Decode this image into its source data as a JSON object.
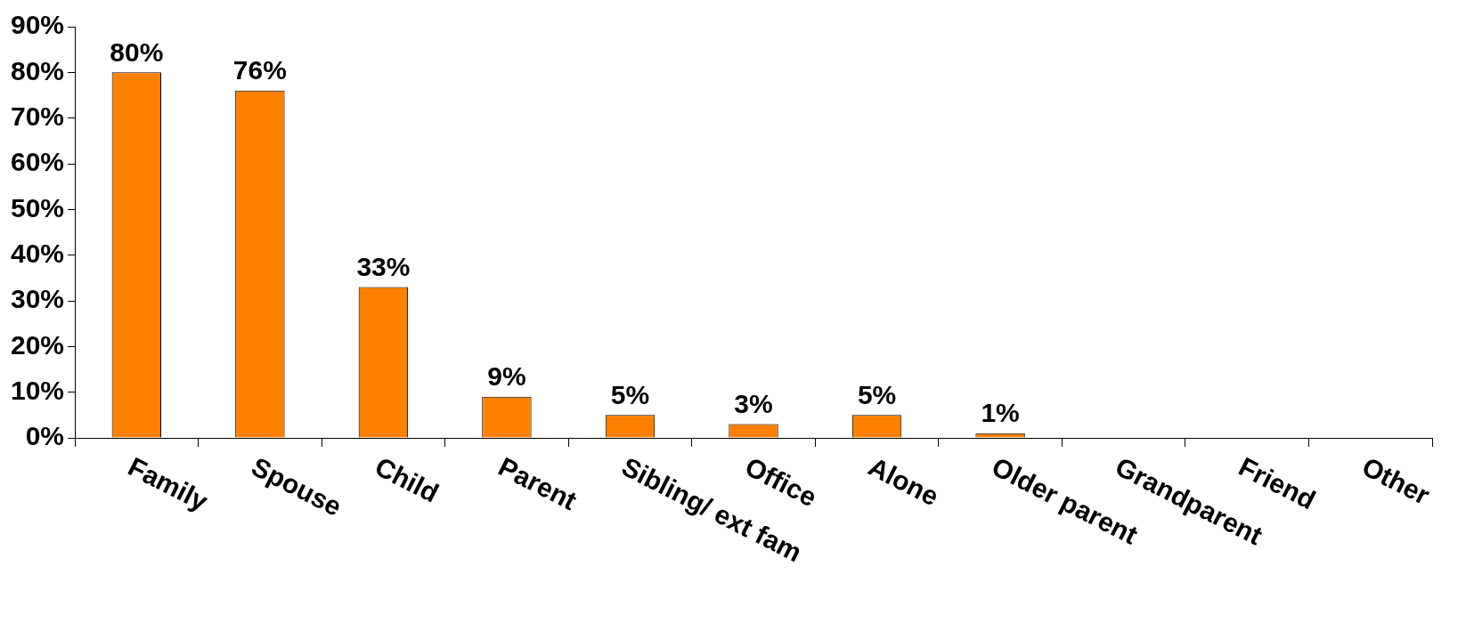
{
  "chart_data": {
    "type": "bar",
    "categories": [
      "Family",
      "Spouse",
      "Child",
      "Parent",
      "Sibling/ ext fam",
      "Office",
      "Alone",
      "Older parent",
      "Grandparent",
      "Friend",
      "Other"
    ],
    "values": [
      80,
      76,
      33,
      9,
      5,
      3,
      5,
      1,
      0,
      0,
      0
    ],
    "value_labels": [
      "80%",
      "76%",
      "33%",
      "9%",
      "5%",
      "3%",
      "5%",
      "1%",
      null,
      null,
      null
    ],
    "color": "#ff8000",
    "ylim": [
      0,
      90
    ],
    "yticks": [
      {
        "value": 0,
        "label": "0%"
      },
      {
        "value": 10,
        "label": "10%"
      },
      {
        "value": 20,
        "label": "20%"
      },
      {
        "value": 30,
        "label": "30%"
      },
      {
        "value": 40,
        "label": "40%"
      },
      {
        "value": 50,
        "label": "50%"
      },
      {
        "value": 60,
        "label": "60%"
      },
      {
        "value": 70,
        "label": "70%"
      },
      {
        "value": 80,
        "label": "80%"
      },
      {
        "value": 90,
        "label": "90%"
      }
    ],
    "grid": false,
    "legend": false
  }
}
